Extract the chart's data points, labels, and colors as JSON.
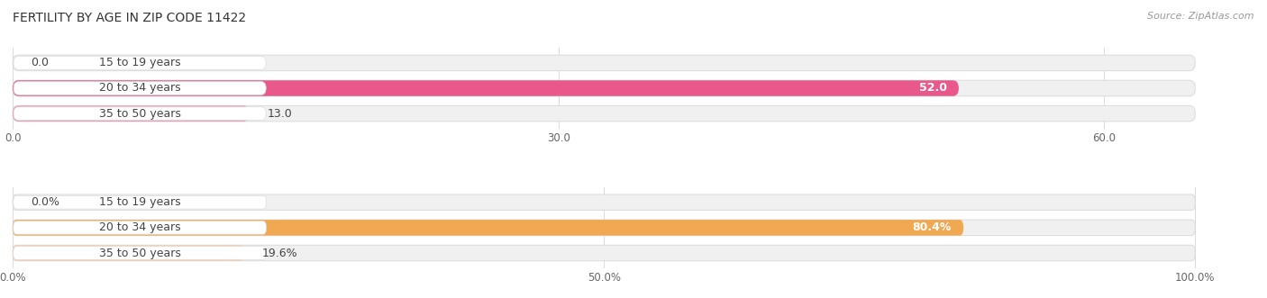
{
  "title": "FERTILITY BY AGE IN ZIP CODE 11422",
  "source": "Source: ZipAtlas.com",
  "top_chart": {
    "categories": [
      "15 to 19 years",
      "20 to 34 years",
      "35 to 50 years"
    ],
    "values": [
      0.0,
      52.0,
      13.0
    ],
    "bar_colors": [
      "#f48fb1",
      "#e8588a",
      "#f48fb1"
    ],
    "track_color": "#f0f0f0",
    "max_val": 65.0,
    "xticks": [
      0.0,
      30.0,
      60.0
    ],
    "value_labels": [
      "0.0",
      "52.0",
      "13.0"
    ],
    "value_inside": [
      false,
      true,
      false
    ]
  },
  "bottom_chart": {
    "categories": [
      "15 to 19 years",
      "20 to 34 years",
      "35 to 50 years"
    ],
    "values": [
      0.0,
      80.4,
      19.6
    ],
    "bar_colors": [
      "#f5cba7",
      "#f0a853",
      "#f5cba7"
    ],
    "track_color": "#f0f0f0",
    "max_val": 100.0,
    "xticks": [
      0.0,
      50.0,
      100.0
    ],
    "xtick_labels": [
      "0.0%",
      "50.0%",
      "100.0%"
    ],
    "value_labels": [
      "0.0%",
      "80.4%",
      "19.6%"
    ],
    "value_inside": [
      false,
      true,
      false
    ]
  },
  "background_color": "#ffffff",
  "label_font_size": 9,
  "title_font_size": 10,
  "source_font_size": 8,
  "bar_height": 0.62,
  "label_color": "#444444",
  "track_border_color": "#dddddd",
  "label_pill_color": "#ffffff",
  "label_pill_border": "#dddddd"
}
